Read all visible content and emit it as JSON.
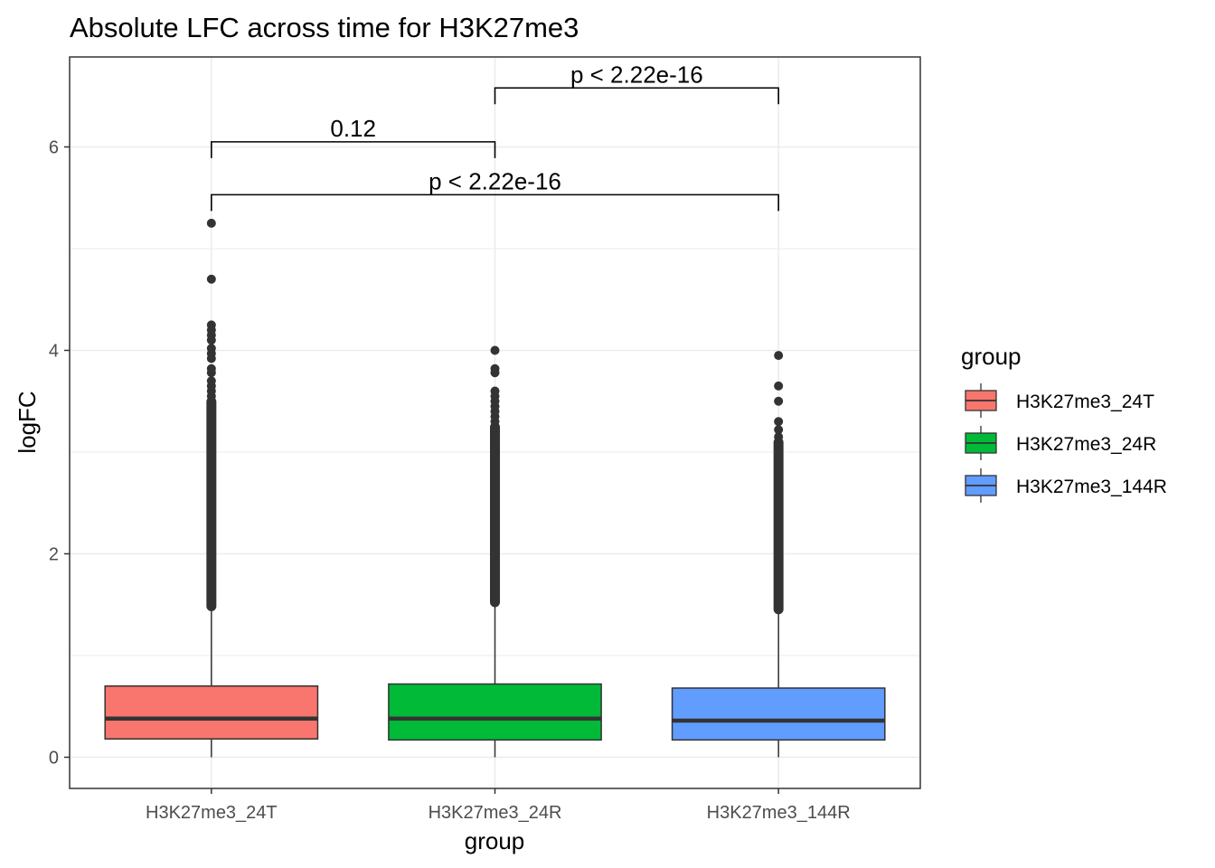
{
  "chart_data": {
    "type": "box",
    "title": "Absolute LFC across time for H3K27me3",
    "xlabel": "group",
    "ylabel": "logFC",
    "ylim": [
      -0.32,
      6.8
    ],
    "yticks": [
      0,
      2,
      4,
      6
    ],
    "grid": true,
    "legend": {
      "title": "group",
      "position": "right",
      "entries": [
        "H3K27me3_24T",
        "H3K27me3_24R",
        "H3K27me3_144R"
      ]
    },
    "categories": [
      "H3K27me3_24T",
      "H3K27me3_24R",
      "H3K27me3_144R"
    ],
    "series": [
      {
        "category": "H3K27me3_24T",
        "color": "#F8766D",
        "min": 0.0,
        "q1": 0.18,
        "median": 0.38,
        "q3": 0.7,
        "whisker_high": 1.48,
        "outlier_band": [
          1.48,
          3.5
        ],
        "outliers": [
          3.55,
          3.6,
          3.65,
          3.7,
          3.78,
          3.82,
          3.92,
          3.97,
          4.02,
          4.1,
          4.15,
          4.2,
          4.25,
          4.7,
          5.25
        ]
      },
      {
        "category": "H3K27me3_24R",
        "color": "#00BA38",
        "min": 0.0,
        "q1": 0.17,
        "median": 0.38,
        "q3": 0.72,
        "whisker_high": 1.52,
        "outlier_band": [
          1.52,
          3.25
        ],
        "outliers": [
          3.3,
          3.35,
          3.4,
          3.45,
          3.5,
          3.55,
          3.6,
          3.78,
          3.82,
          4.0
        ]
      },
      {
        "category": "H3K27me3_144R",
        "color": "#619CFF",
        "min": 0.0,
        "q1": 0.17,
        "median": 0.36,
        "q3": 0.68,
        "whisker_high": 1.45,
        "outlier_band": [
          1.45,
          3.1
        ],
        "outliers": [
          3.15,
          3.22,
          3.3,
          3.5,
          3.65,
          3.95
        ]
      }
    ],
    "comparisons": [
      {
        "from": "H3K27me3_24T",
        "to": "H3K27me3_24R",
        "label": "0.12",
        "y": 6.05
      },
      {
        "from": "H3K27me3_24R",
        "to": "H3K27me3_144R",
        "label": "p < 2.22e-16",
        "y": 6.58
      },
      {
        "from": "H3K27me3_24T",
        "to": "H3K27me3_144R",
        "label": "p < 2.22e-16",
        "y": 5.53
      }
    ]
  }
}
